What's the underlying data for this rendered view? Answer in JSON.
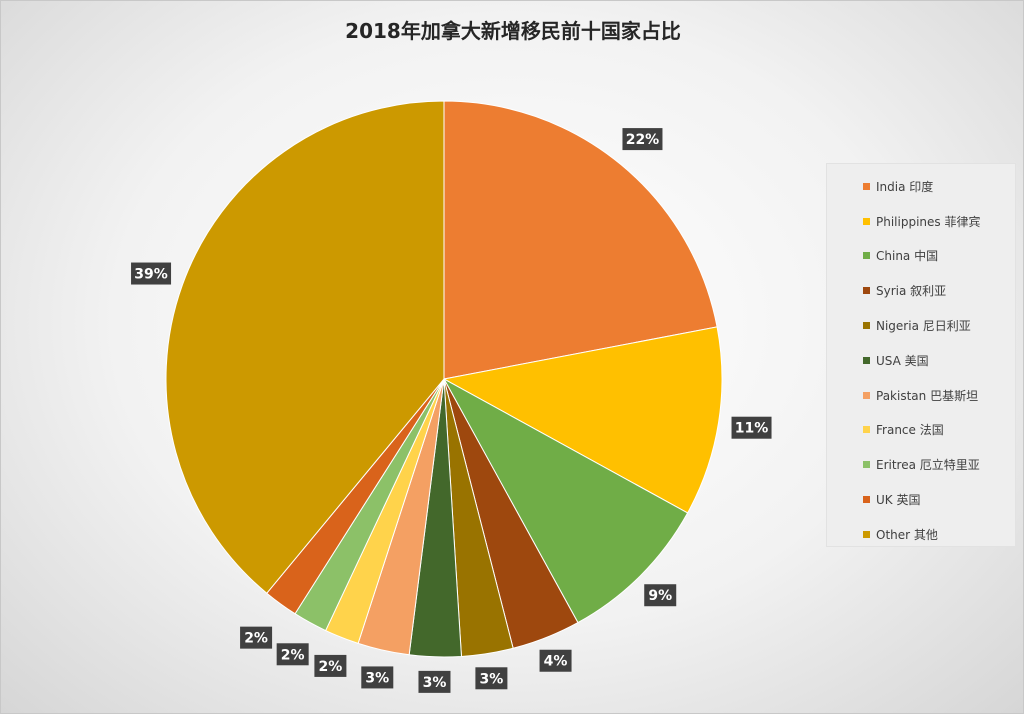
{
  "chart_data": {
    "type": "pie",
    "title": "2018年加拿大新增移民前十国家占比",
    "start_angle_deg": 0,
    "direction": "clockwise",
    "legend_position": "right",
    "series": [
      {
        "name": "India 印度",
        "value": 22,
        "label": "22%",
        "color": "#ED7D31"
      },
      {
        "name": "Philippines 菲律宾",
        "value": 11,
        "label": "11%",
        "color": "#FFC000"
      },
      {
        "name": "China 中国",
        "value": 9,
        "label": "9%",
        "color": "#70AD47"
      },
      {
        "name": "Syria 叙利亚",
        "value": 4,
        "label": "4%",
        "color": "#9E480E"
      },
      {
        "name": "Nigeria 尼日利亚",
        "value": 3,
        "label": "3%",
        "color": "#997300"
      },
      {
        "name": "USA 美国",
        "value": 3,
        "label": "3%",
        "color": "#43682B"
      },
      {
        "name": "Pakistan 巴基斯坦",
        "value": 3,
        "label": "3%",
        "color": "#F4A063"
      },
      {
        "name": "France 法国",
        "value": 2,
        "label": "2%",
        "color": "#FFD34B"
      },
      {
        "name": "Eritrea 厄立特里亚",
        "value": 2,
        "label": "2%",
        "color": "#8CC168"
      },
      {
        "name": "UK 英国",
        "value": 2,
        "label": "2%",
        "color": "#D9631B"
      },
      {
        "name": "Other 其他",
        "value": 39,
        "label": "39%",
        "color": "#CC9900"
      }
    ]
  }
}
